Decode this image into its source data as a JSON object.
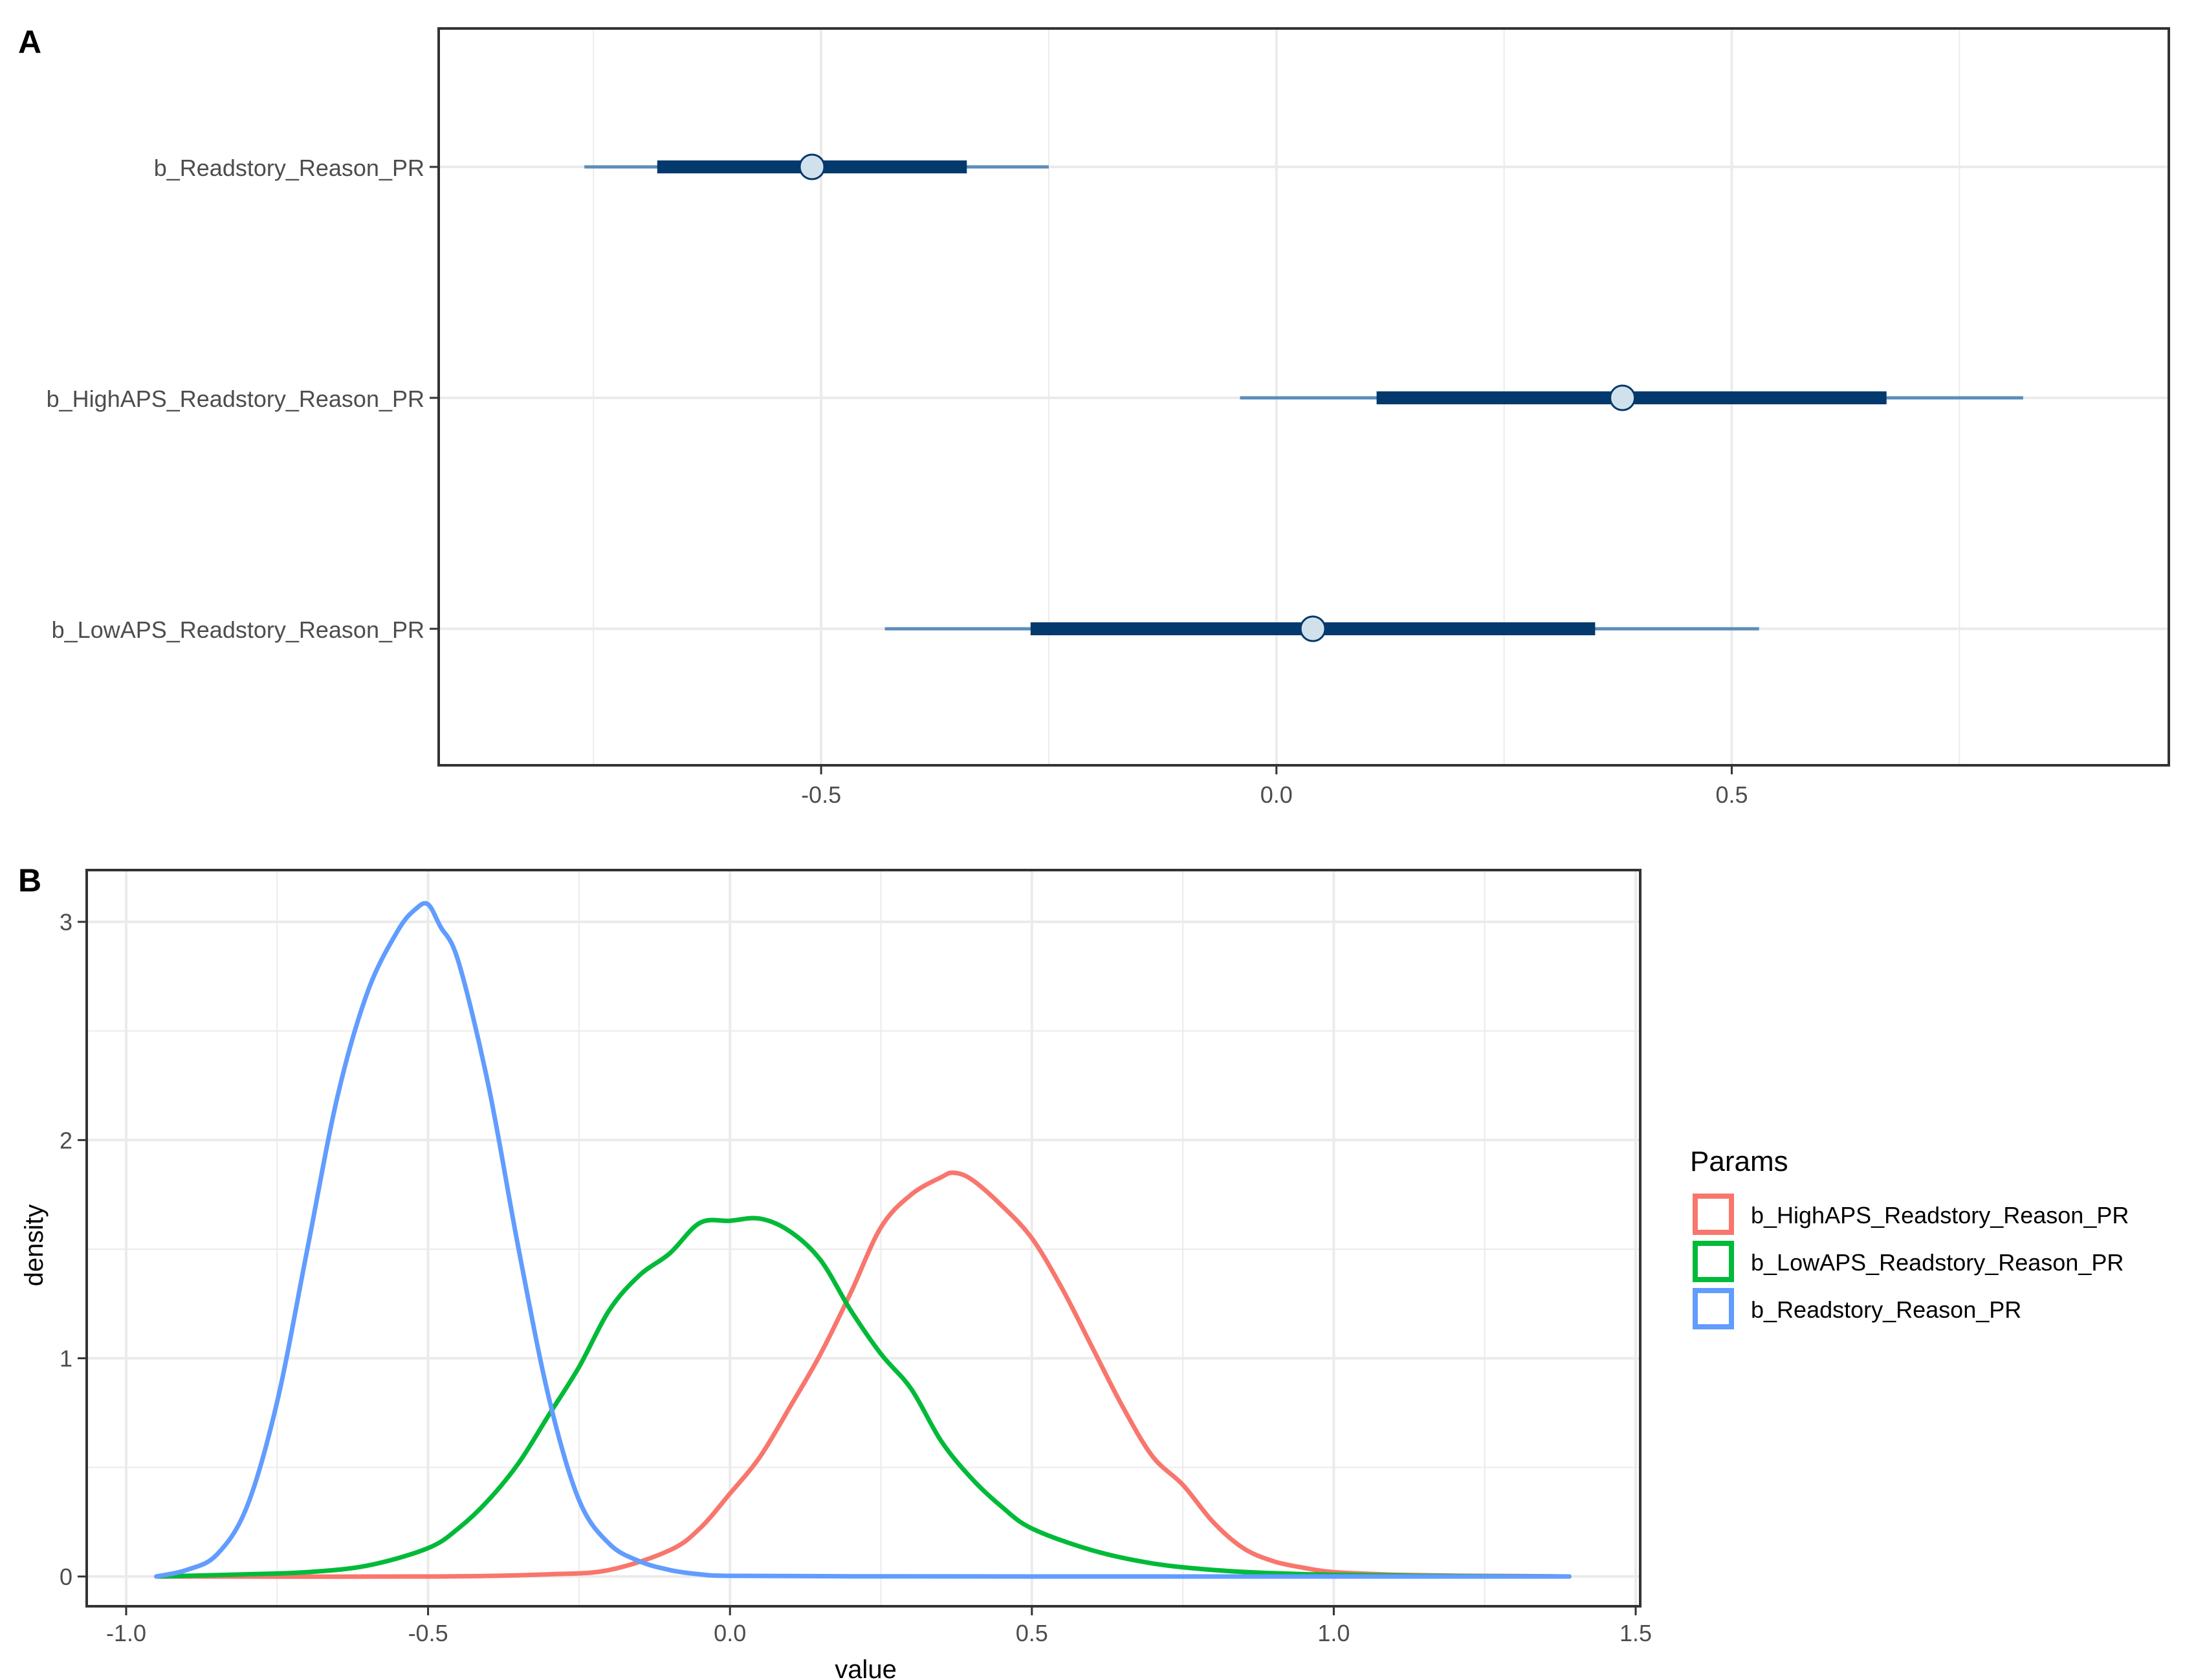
{
  "chart_data": [
    {
      "panel": "A",
      "type": "interval",
      "xlim": [
        -0.92,
        0.98
      ],
      "x_ticks": [
        -0.5,
        0.0,
        0.5
      ],
      "x_tick_labels": [
        "-0.5",
        "0.0",
        "0.5"
      ],
      "x_minor": [
        -0.75,
        -0.25,
        0.25,
        0.75
      ],
      "grid": true,
      "rows": [
        {
          "label": "b_Readstory_Reason_PR",
          "median": -0.51,
          "inner": [
            -0.68,
            -0.34
          ],
          "outer": [
            -0.76,
            -0.25
          ]
        },
        {
          "label": "b_HighAPS_Readstory_Reason_PR",
          "median": 0.38,
          "inner": [
            0.11,
            0.67
          ],
          "outer": [
            -0.04,
            0.82
          ]
        },
        {
          "label": "b_LowAPS_Readstory_Reason_PR",
          "median": 0.04,
          "inner": [
            -0.27,
            0.35
          ],
          "outer": [
            -0.43,
            0.53
          ]
        }
      ],
      "colors": {
        "inner": "#03396c",
        "outer": "#5b8db8",
        "point_fill": "#d1e1ec",
        "point_stroke": "#03396c"
      }
    },
    {
      "panel": "B",
      "type": "line",
      "xlabel": "value",
      "ylabel": "density",
      "xlim": [
        -1.0,
        1.5
      ],
      "ylim": [
        0,
        3.2
      ],
      "x_ticks": [
        -1.0,
        -0.5,
        0.0,
        0.5,
        1.0,
        1.5
      ],
      "x_tick_labels": [
        "-1.0",
        "-0.5",
        "0.0",
        "0.5",
        "1.0",
        "1.5"
      ],
      "y_ticks": [
        0,
        1,
        2,
        3
      ],
      "y_tick_labels": [
        "0",
        "1",
        "2",
        "3"
      ],
      "grid": true,
      "legend": {
        "title": "Params",
        "position": "right"
      },
      "series": [
        {
          "name": "b_HighAPS_Readstory_Reason_PR",
          "color": "#f8766d",
          "x": [
            -0.95,
            -0.5,
            -0.3,
            -0.2,
            -0.1,
            -0.05,
            0.0,
            0.05,
            0.1,
            0.15,
            0.2,
            0.25,
            0.3,
            0.35,
            0.37,
            0.4,
            0.45,
            0.5,
            0.55,
            0.6,
            0.65,
            0.7,
            0.75,
            0.8,
            0.85,
            0.9,
            0.95,
            1.0,
            1.1,
            1.2,
            1.3,
            1.39
          ],
          "y": [
            0,
            0,
            0.01,
            0.03,
            0.12,
            0.22,
            0.38,
            0.55,
            0.78,
            1.02,
            1.3,
            1.6,
            1.75,
            1.83,
            1.85,
            1.82,
            1.7,
            1.55,
            1.32,
            1.05,
            0.78,
            0.55,
            0.42,
            0.25,
            0.13,
            0.07,
            0.04,
            0.02,
            0.008,
            0.004,
            0.002,
            0
          ]
        },
        {
          "name": "b_LowAPS_Readstory_Reason_PR",
          "color": "#00ba38",
          "x": [
            -0.95,
            -0.8,
            -0.7,
            -0.6,
            -0.5,
            -0.45,
            -0.4,
            -0.35,
            -0.3,
            -0.25,
            -0.2,
            -0.15,
            -0.1,
            -0.05,
            0.0,
            0.05,
            0.1,
            0.15,
            0.2,
            0.25,
            0.3,
            0.35,
            0.4,
            0.45,
            0.5,
            0.6,
            0.7,
            0.8,
            0.9,
            1.0,
            1.2,
            1.39
          ],
          "y": [
            0,
            0.01,
            0.02,
            0.05,
            0.13,
            0.22,
            0.35,
            0.52,
            0.74,
            0.96,
            1.22,
            1.38,
            1.48,
            1.62,
            1.63,
            1.64,
            1.58,
            1.45,
            1.22,
            1.02,
            0.86,
            0.62,
            0.45,
            0.32,
            0.22,
            0.12,
            0.06,
            0.03,
            0.015,
            0.008,
            0.002,
            0
          ]
        },
        {
          "name": "b_Readstory_Reason_PR",
          "color": "#619cff",
          "x": [
            -0.95,
            -0.9,
            -0.85,
            -0.8,
            -0.75,
            -0.7,
            -0.65,
            -0.6,
            -0.55,
            -0.52,
            -0.5,
            -0.48,
            -0.45,
            -0.4,
            -0.35,
            -0.3,
            -0.25,
            -0.2,
            -0.15,
            -0.1,
            -0.05,
            0.0,
            0.2,
            0.5,
            1.0,
            1.39
          ],
          "y": [
            0,
            0.03,
            0.1,
            0.32,
            0.8,
            1.5,
            2.2,
            2.68,
            2.96,
            3.06,
            3.08,
            2.98,
            2.82,
            2.25,
            1.5,
            0.82,
            0.35,
            0.15,
            0.07,
            0.03,
            0.01,
            0.003,
            0.001,
            0,
            0,
            0
          ]
        }
      ]
    }
  ],
  "panel_labels": {
    "a": "A",
    "b": "B"
  },
  "colors": {
    "grid": "#ebebeb",
    "frame": "#333333",
    "tick_text": "#4d4d4d",
    "axis_title": "#000000"
  }
}
